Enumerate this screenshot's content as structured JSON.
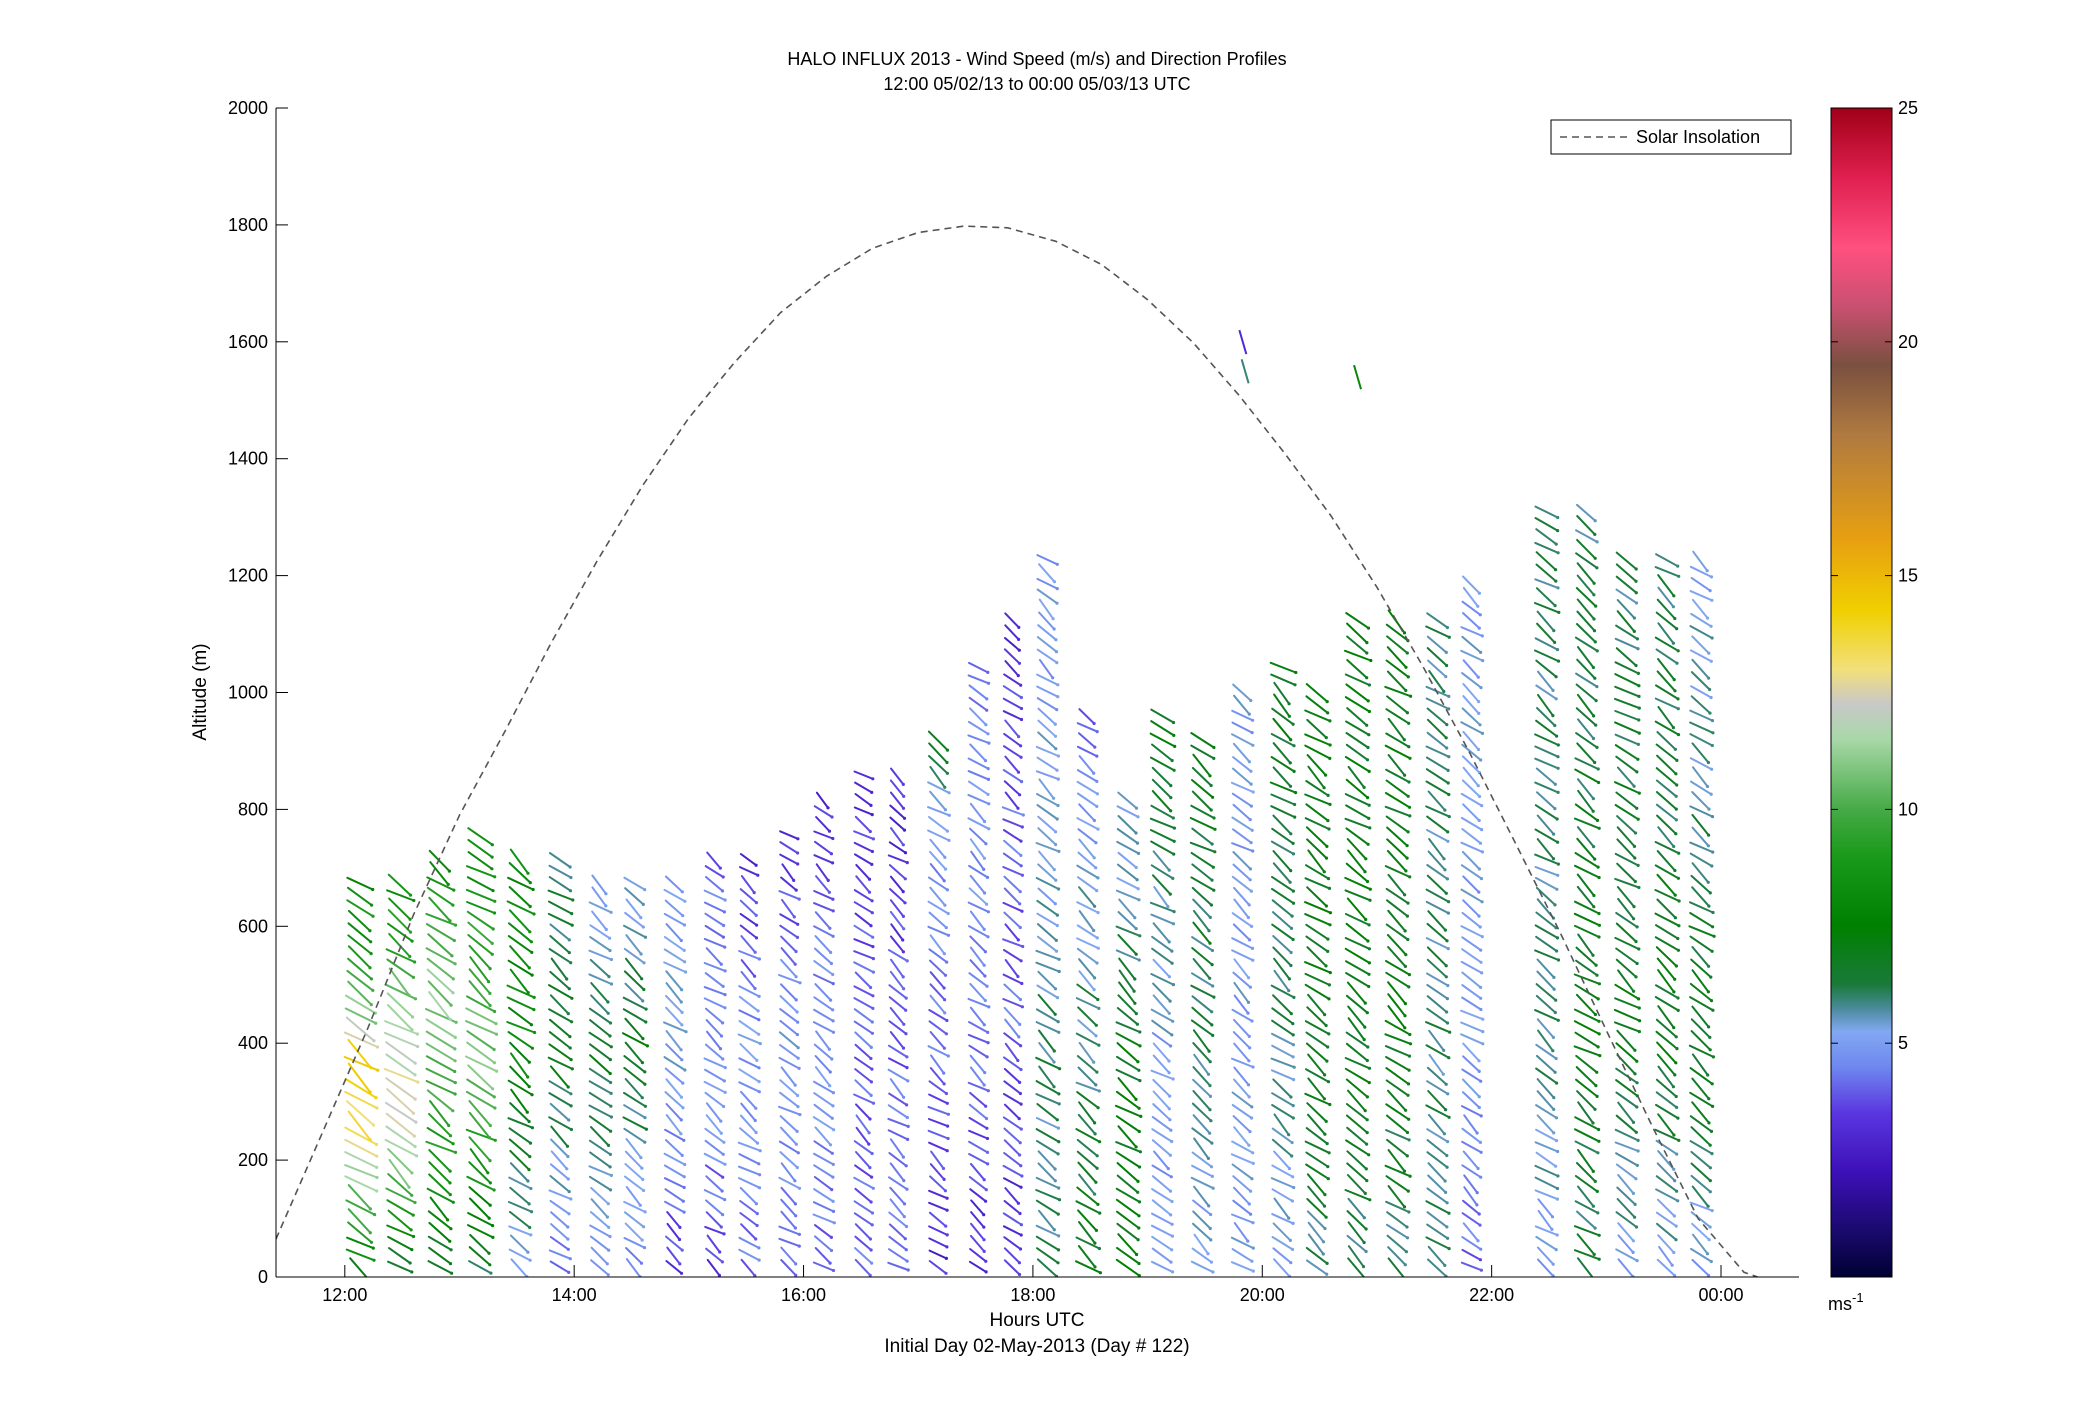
{
  "chart_data": {
    "type": "vector-field",
    "title": "HALO INFLUX 2013 - Wind Speed (m/s) and Direction Profiles",
    "subtitle": "12:00 05/02/13 to 00:00 05/03/13  UTC",
    "xlabel": "Hours UTC",
    "xlabel2": "Initial Day 02-May-2013 (Day # 122)",
    "ylabel": "Altitude (m)",
    "xlim": [
      11.4,
      24.68
    ],
    "ylim": [
      0,
      2000
    ],
    "x_ticks": [
      {
        "value": 12,
        "label": "12:00"
      },
      {
        "value": 14,
        "label": "14:00"
      },
      {
        "value": 16,
        "label": "16:00"
      },
      {
        "value": 18,
        "label": "18:00"
      },
      {
        "value": 20,
        "label": "20:00"
      },
      {
        "value": 22,
        "label": "22:00"
      },
      {
        "value": 24,
        "label": "00:00"
      }
    ],
    "y_ticks": [
      0,
      200,
      400,
      600,
      800,
      1000,
      1200,
      1400,
      1600,
      1800,
      2000
    ],
    "grid": false,
    "legend": {
      "position": "top-right",
      "entries": [
        "Solar Insolation"
      ]
    },
    "colorbar": {
      "range": [
        0,
        25
      ],
      "ticks": [
        5,
        10,
        15,
        20,
        25
      ],
      "unit": "ms",
      "unit_exp": "-1"
    },
    "solar_insolation": {
      "style": "dashed",
      "color": "#555555",
      "x": [
        11.4,
        11.8,
        12.2,
        12.6,
        13.0,
        13.4,
        13.8,
        14.2,
        14.6,
        15.0,
        15.4,
        15.8,
        16.2,
        16.6,
        17.0,
        17.4,
        17.78,
        18.2,
        18.6,
        19.0,
        19.4,
        19.8,
        20.2,
        20.6,
        21.0,
        21.4,
        21.8,
        22.2,
        22.6,
        23.0,
        23.4,
        23.8,
        24.2,
        24.32
      ],
      "y": [
        65,
        245,
        425,
        620,
        790,
        935,
        1085,
        1225,
        1355,
        1470,
        1565,
        1650,
        1712,
        1760,
        1787,
        1798,
        1795,
        1772,
        1732,
        1672,
        1598,
        1508,
        1408,
        1302,
        1180,
        1045,
        900,
        745,
        588,
        422,
        258,
        100,
        8,
        0
      ]
    },
    "wind_profiles": [
      {
        "time": 12.1,
        "top": 680,
        "base_speed": 9,
        "speed_profile": [
          [
            0,
            7
          ],
          [
            250,
            13
          ],
          [
            380,
            14
          ],
          [
            450,
            11
          ],
          [
            560,
            9
          ],
          [
            700,
            8
          ]
        ]
      },
      {
        "time": 12.45,
        "top": 680,
        "base_speed": 8,
        "speed_profile": [
          [
            0,
            6
          ],
          [
            250,
            12
          ],
          [
            320,
            13
          ],
          [
            450,
            11
          ],
          [
            700,
            8
          ]
        ]
      },
      {
        "time": 12.8,
        "top": 720,
        "base_speed": 8,
        "speed_profile": [
          [
            0,
            6
          ],
          [
            300,
            10
          ],
          [
            500,
            11
          ],
          [
            700,
            8
          ]
        ]
      },
      {
        "time": 13.15,
        "top": 760,
        "base_speed": 8,
        "speed_profile": [
          [
            0,
            6
          ],
          [
            350,
            11
          ],
          [
            500,
            10
          ],
          [
            760,
            8
          ]
        ]
      },
      {
        "time": 13.5,
        "top": 720,
        "base_speed": 8,
        "speed_profile": [
          [
            0,
            5
          ],
          [
            400,
            8
          ],
          [
            720,
            8
          ]
        ]
      },
      {
        "time": 13.85,
        "top": 720,
        "base_speed": 7,
        "speed_profile": [
          [
            0,
            4
          ],
          [
            400,
            7
          ],
          [
            720,
            6
          ]
        ]
      },
      {
        "time": 14.2,
        "top": 680,
        "base_speed": 7,
        "speed_profile": [
          [
            0,
            4
          ],
          [
            400,
            7
          ],
          [
            680,
            5
          ]
        ]
      },
      {
        "time": 14.5,
        "top": 680,
        "base_speed": 6,
        "speed_profile": [
          [
            0,
            4
          ],
          [
            400,
            7
          ],
          [
            680,
            5
          ]
        ]
      },
      {
        "time": 14.85,
        "top": 680,
        "base_speed": 6,
        "speed_profile": [
          [
            0,
            3
          ],
          [
            300,
            5
          ],
          [
            680,
            5
          ]
        ]
      },
      {
        "time": 15.2,
        "top": 720,
        "base_speed": 5,
        "speed_profile": [
          [
            0,
            3
          ],
          [
            300,
            5
          ],
          [
            720,
            4
          ]
        ]
      },
      {
        "time": 15.5,
        "top": 720,
        "base_speed": 4,
        "speed_profile": [
          [
            0,
            4
          ],
          [
            400,
            5
          ],
          [
            720,
            3
          ]
        ]
      },
      {
        "time": 15.85,
        "top": 760,
        "base_speed": 4,
        "speed_profile": [
          [
            0,
            4
          ],
          [
            400,
            5
          ],
          [
            760,
            3
          ]
        ]
      },
      {
        "time": 16.15,
        "top": 830,
        "base_speed": 4,
        "speed_profile": [
          [
            0,
            4
          ],
          [
            400,
            5
          ],
          [
            830,
            3
          ]
        ]
      },
      {
        "time": 16.5,
        "top": 870,
        "base_speed": 4,
        "speed_profile": [
          [
            0,
            4
          ],
          [
            400,
            4
          ],
          [
            870,
            3
          ]
        ]
      },
      {
        "time": 16.8,
        "top": 870,
        "base_speed": 4,
        "speed_profile": [
          [
            0,
            4
          ],
          [
            400,
            4
          ],
          [
            870,
            3
          ]
        ]
      },
      {
        "time": 17.15,
        "top": 940,
        "base_speed": 4,
        "speed_profile": [
          [
            0,
            3
          ],
          [
            400,
            4
          ],
          [
            800,
            5
          ],
          [
            940,
            7
          ]
        ]
      },
      {
        "time": 17.5,
        "top": 1050,
        "base_speed": 4,
        "speed_profile": [
          [
            0,
            3
          ],
          [
            400,
            4
          ],
          [
            800,
            5
          ],
          [
            1050,
            4
          ]
        ]
      },
      {
        "time": 17.8,
        "top": 1130,
        "base_speed": 4,
        "speed_profile": [
          [
            0,
            3
          ],
          [
            400,
            4
          ],
          [
            800,
            4
          ],
          [
            1130,
            3
          ]
        ]
      },
      {
        "time": 18.1,
        "top": 1240,
        "base_speed": 5,
        "speed_profile": [
          [
            0,
            6
          ],
          [
            400,
            6
          ],
          [
            800,
            5
          ],
          [
            1240,
            5
          ]
        ]
      },
      {
        "time": 18.45,
        "top": 980,
        "base_speed": 5,
        "speed_profile": [
          [
            0,
            7
          ],
          [
            400,
            6
          ],
          [
            800,
            5
          ],
          [
            980,
            4
          ]
        ]
      },
      {
        "time": 18.8,
        "top": 830,
        "base_speed": 6,
        "speed_profile": [
          [
            0,
            7
          ],
          [
            400,
            7
          ],
          [
            830,
            5
          ]
        ]
      },
      {
        "time": 19.1,
        "top": 980,
        "base_speed": 5,
        "speed_profile": [
          [
            0,
            5
          ],
          [
            400,
            5
          ],
          [
            980,
            7
          ]
        ]
      },
      {
        "time": 19.45,
        "top": 940,
        "base_speed": 5,
        "speed_profile": [
          [
            0,
            5
          ],
          [
            400,
            6
          ],
          [
            940,
            7
          ]
        ]
      },
      {
        "time": 19.8,
        "top": 1010,
        "base_speed": 5,
        "speed_profile": [
          [
            0,
            5
          ],
          [
            400,
            5
          ],
          [
            1010,
            5
          ]
        ]
      },
      {
        "time": 20.15,
        "top": 1050,
        "base_speed": 6,
        "speed_profile": [
          [
            0,
            5
          ],
          [
            400,
            6
          ],
          [
            1050,
            7
          ]
        ]
      },
      {
        "time": 20.45,
        "top": 1010,
        "base_speed": 7,
        "speed_profile": [
          [
            0,
            6
          ],
          [
            400,
            7
          ],
          [
            1010,
            7
          ]
        ]
      },
      {
        "time": 20.8,
        "top": 1130,
        "base_speed": 7,
        "speed_profile": [
          [
            0,
            6
          ],
          [
            400,
            7
          ],
          [
            1130,
            7
          ]
        ]
      },
      {
        "time": 21.15,
        "top": 1130,
        "base_speed": 7,
        "speed_profile": [
          [
            0,
            6
          ],
          [
            400,
            7
          ],
          [
            1130,
            7
          ]
        ]
      },
      {
        "time": 21.5,
        "top": 1130,
        "base_speed": 7,
        "speed_profile": [
          [
            0,
            6
          ],
          [
            400,
            6
          ],
          [
            1130,
            6
          ]
        ]
      },
      {
        "time": 21.8,
        "top": 1200,
        "base_speed": 6,
        "speed_profile": [
          [
            0,
            4
          ],
          [
            400,
            5
          ],
          [
            1200,
            5
          ]
        ]
      },
      {
        "time": 22.45,
        "top": 1320,
        "base_speed": 6,
        "speed_profile": [
          [
            0,
            5
          ],
          [
            400,
            6
          ],
          [
            1320,
            6
          ]
        ]
      },
      {
        "time": 22.8,
        "top": 1320,
        "base_speed": 7,
        "speed_profile": [
          [
            0,
            6
          ],
          [
            400,
            7
          ],
          [
            1320,
            6
          ]
        ]
      },
      {
        "time": 23.15,
        "top": 1240,
        "base_speed": 7,
        "speed_profile": [
          [
            0,
            5
          ],
          [
            400,
            7
          ],
          [
            1240,
            6
          ]
        ]
      },
      {
        "time": 23.5,
        "top": 1240,
        "base_speed": 7,
        "speed_profile": [
          [
            0,
            5
          ],
          [
            400,
            7
          ],
          [
            1240,
            6
          ]
        ]
      },
      {
        "time": 23.8,
        "top": 1240,
        "base_speed": 7,
        "speed_profile": [
          [
            0,
            5
          ],
          [
            400,
            7
          ],
          [
            1240,
            5
          ]
        ]
      }
    ],
    "isolated_vectors": [
      {
        "time": 19.8,
        "alt": 1620,
        "speed": 3
      },
      {
        "time": 19.82,
        "alt": 1570,
        "speed": 6
      },
      {
        "time": 20.8,
        "alt": 1560,
        "speed": 8
      }
    ]
  }
}
